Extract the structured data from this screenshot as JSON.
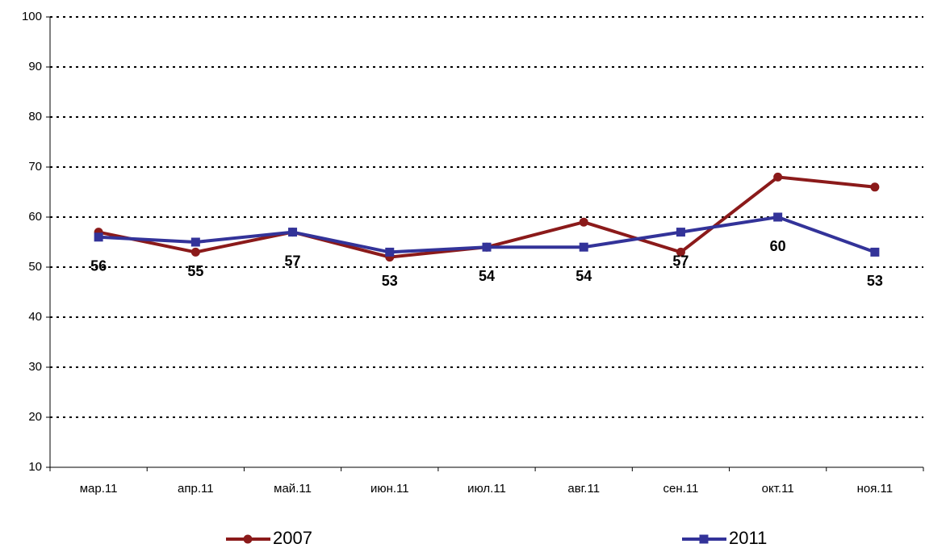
{
  "chart_data": {
    "type": "line",
    "categories": [
      "мар.11",
      "апр.11",
      "май.11",
      "июн.11",
      "июл.11",
      "авг.11",
      "сен.11",
      "окт.11",
      "ноя.11"
    ],
    "series": [
      {
        "name": "2007",
        "color": "#8b1a1a",
        "marker": "circle",
        "values": [
          57,
          53,
          57,
          52,
          54,
          59,
          53,
          68,
          66
        ]
      },
      {
        "name": "2011",
        "color": "#333399",
        "marker": "square",
        "labels": true,
        "values": [
          56,
          55,
          57,
          53,
          54,
          54,
          57,
          60,
          53
        ]
      }
    ],
    "ylim": [
      10,
      100
    ],
    "yticks": [
      10,
      20,
      30,
      40,
      50,
      60,
      70,
      80,
      90,
      100
    ],
    "grid": true
  }
}
